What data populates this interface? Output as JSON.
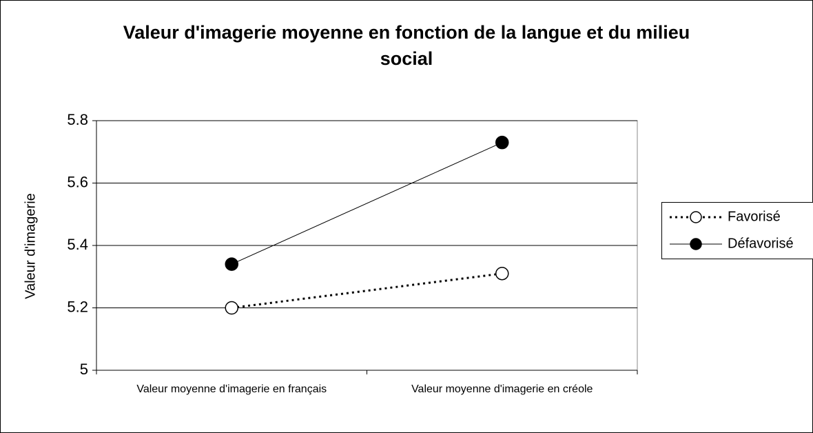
{
  "chart_data": {
    "type": "line",
    "title": "Valeur d'imagerie moyenne en fonction de la langue et du milieu social",
    "y_label": "Valeur d'imagerie",
    "categories": [
      "Valeur moyenne d'imagerie en français",
      "Valeur moyenne d'imagerie en créole"
    ],
    "series": [
      {
        "name": "Favorisé",
        "color": "#000000",
        "line_style": "dotted",
        "marker_fill": "#ffffff",
        "values": [
          5.2,
          5.31
        ]
      },
      {
        "name": "Défavorisé",
        "color": "#000000",
        "line_style": "solid",
        "marker_fill": "#000000",
        "values": [
          5.34,
          5.73
        ]
      }
    ],
    "ylim": [
      5,
      5.8
    ],
    "yticks": [
      5,
      5.2,
      5.4,
      5.6,
      5.8
    ],
    "grid": true,
    "legend": "right"
  }
}
